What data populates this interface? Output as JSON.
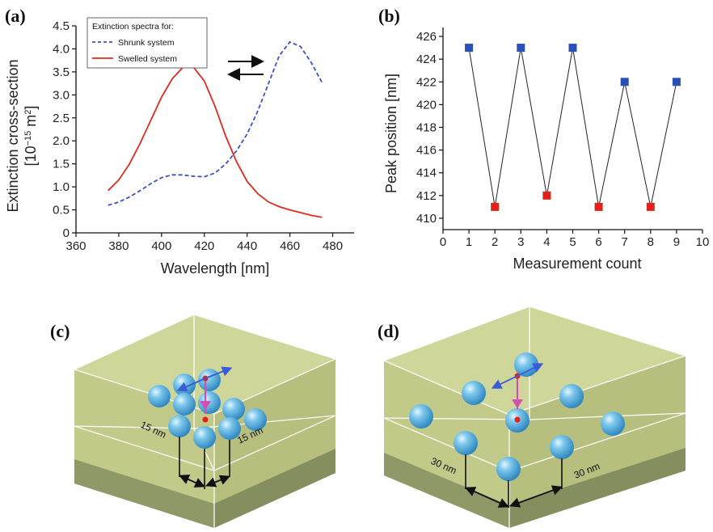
{
  "panels": {
    "a": "(a)",
    "b": "(b)",
    "c": "(c)",
    "d": "(d)"
  },
  "chart_data": [
    {
      "panel": "(a)",
      "type": "line",
      "xlabel": "Wavelength [nm]",
      "ylabel_line1": "Extinction cross-section",
      "ylabel_line2": "[10^-15 m^2]",
      "xlim": [
        360,
        490
      ],
      "ylim": [
        0,
        4.5
      ],
      "xticks": [
        360,
        380,
        400,
        420,
        440,
        460,
        480
      ],
      "yticks": [
        0,
        0.5,
        1.0,
        1.5,
        2.0,
        2.5,
        3.0,
        3.5,
        4.0,
        4.5
      ],
      "ytick_labels": [
        "0",
        "0.5",
        "1.0",
        "1.5",
        "2.0",
        "2.5",
        "3.0",
        "3.5",
        "4.0",
        "4.5"
      ],
      "legend_title": "Extinction spectra for:",
      "legend_position": "top-left",
      "series": [
        {
          "name": "Shrunk system",
          "color": "#3b4fd0",
          "style": "dashed",
          "x": [
            375,
            380,
            385,
            390,
            395,
            400,
            405,
            410,
            415,
            420,
            425,
            430,
            435,
            440,
            445,
            450,
            455,
            460,
            465,
            470,
            475
          ],
          "y": [
            0.6,
            0.67,
            0.78,
            0.92,
            1.07,
            1.2,
            1.26,
            1.26,
            1.23,
            1.22,
            1.3,
            1.5,
            1.78,
            2.15,
            2.65,
            3.25,
            3.85,
            4.15,
            4.05,
            3.7,
            3.27
          ]
        },
        {
          "name": "Swelled system",
          "color": "#e02a1f",
          "style": "solid",
          "x": [
            375,
            380,
            385,
            390,
            395,
            400,
            405,
            410,
            413,
            415,
            420,
            425,
            430,
            435,
            440,
            445,
            450,
            455,
            460,
            465,
            470,
            475
          ],
          "y": [
            0.92,
            1.15,
            1.5,
            1.95,
            2.45,
            2.95,
            3.35,
            3.6,
            3.65,
            3.6,
            3.3,
            2.75,
            2.1,
            1.55,
            1.12,
            0.85,
            0.67,
            0.57,
            0.5,
            0.44,
            0.38,
            0.34
          ]
        }
      ],
      "annotation": "reversible arrows (right / left)"
    },
    {
      "panel": "(b)",
      "type": "line",
      "xlabel": "Measurement count",
      "ylabel": "Peak position [nm]",
      "xlim": [
        0,
        10
      ],
      "ylim": [
        409,
        426.5
      ],
      "xticks": [
        0,
        1,
        2,
        3,
        4,
        5,
        6,
        7,
        8,
        9,
        10
      ],
      "yticks": [
        410,
        412,
        414,
        416,
        418,
        420,
        422,
        424,
        426
      ],
      "x": [
        1,
        2,
        3,
        4,
        5,
        6,
        7,
        8,
        9
      ],
      "y": [
        425,
        411,
        425,
        412,
        425,
        411,
        422,
        411,
        422
      ],
      "marker_colors": [
        "#2a4fb5",
        "#e0221b",
        "#2a4fb5",
        "#e0221b",
        "#2a4fb5",
        "#e0221b",
        "#2a4fb5",
        "#e0221b",
        "#2a4fb5"
      ],
      "line_color": "#222222"
    }
  ],
  "illustrations": {
    "c": {
      "dim_left": "15 nm",
      "dim_right": "15 nm"
    },
    "d": {
      "dim_left": "30 nm",
      "dim_right": "30 nm"
    }
  },
  "colors": {
    "box_top": "#cfd69a",
    "box_side": "#bcc486",
    "box_bottom": "#8f9968",
    "sphere": "#4aa6d6"
  }
}
